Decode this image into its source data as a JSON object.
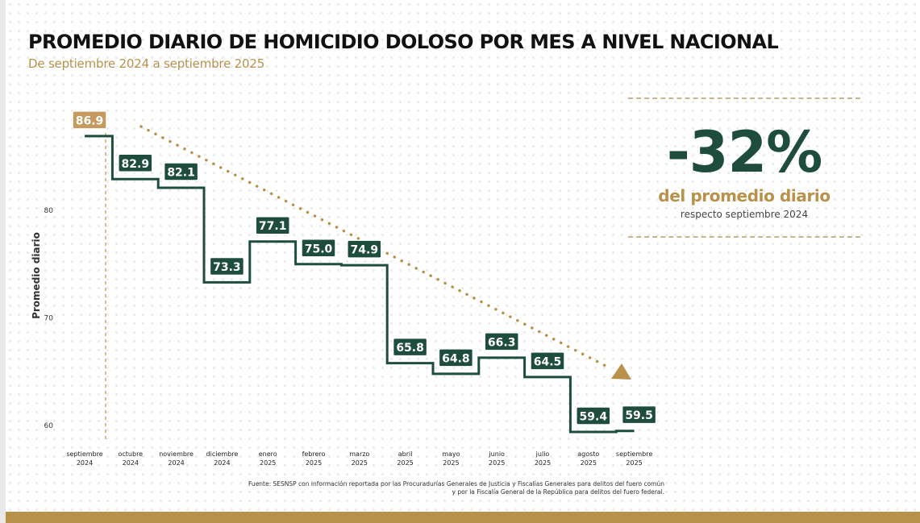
{
  "title": "PROMEDIO DIARIO DE HOMICIDIO DOLOSO POR MES A NIVEL NACIONAL",
  "subtitle": "De septiembre 2024 a septiembre 2025",
  "kpi": {
    "value": "-32%",
    "label": "del promedio diario",
    "sublabel": "respecto septiembre 2024"
  },
  "source": {
    "line1": "Fuente: SESNSP con información reportada por las Procuradurías Generales de Justicia y Fiscalías Generales para delitos del fuero común",
    "line2": "y por la Fiscalía General de la República para delitos del fuero federal."
  },
  "colors": {
    "series": "#1f4d3d",
    "accent": "#b8924a",
    "first_label_bg": "#c49a5e"
  },
  "chart_data": {
    "type": "line",
    "step": true,
    "categories": [
      [
        "septiembre",
        "2024"
      ],
      [
        "octubre",
        "2024"
      ],
      [
        "noviembre",
        "2024"
      ],
      [
        "diciembre",
        "2024"
      ],
      [
        "enero",
        "2025"
      ],
      [
        "febrero",
        "2025"
      ],
      [
        "marzo",
        "2025"
      ],
      [
        "abril",
        "2025"
      ],
      [
        "mayo",
        "2025"
      ],
      [
        "junio",
        "2025"
      ],
      [
        "julio",
        "2025"
      ],
      [
        "agosto",
        "2025"
      ],
      [
        "septiembre",
        "2025"
      ]
    ],
    "values": [
      86.9,
      82.9,
      82.1,
      73.3,
      77.1,
      75.0,
      74.9,
      65.8,
      64.8,
      66.3,
      64.5,
      59.4,
      59.5
    ],
    "value_labels": [
      "86.9",
      "82.9",
      "82.1",
      "73.3",
      "77.1",
      "75.0",
      "74.9",
      "65.8",
      "64.8",
      "66.3",
      "64.5",
      "59.4",
      "59.5"
    ],
    "ylabel": "Promedio diario",
    "yticks": [
      "60",
      "70",
      "80"
    ],
    "ylim": [
      60,
      80
    ],
    "trend_arrow": true,
    "grid": false
  }
}
